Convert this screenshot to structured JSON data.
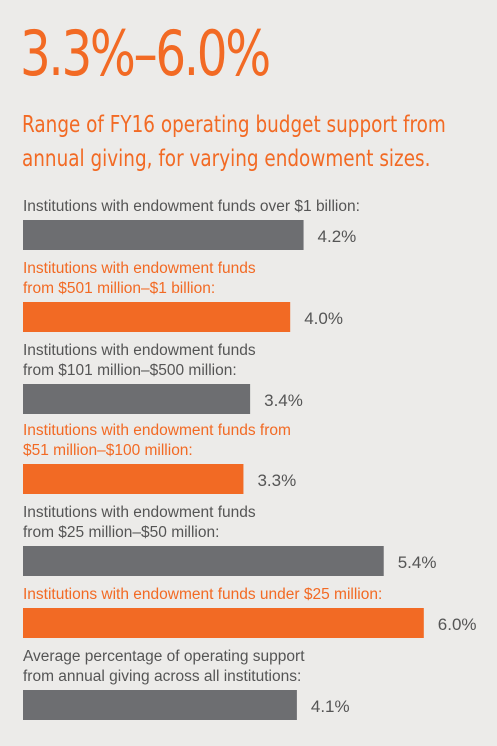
{
  "header": {
    "headline": "3.3%–6.0%",
    "subtitle": "Range of FY16 operating budget support from annual giving, for varying endowment sizes."
  },
  "colors": {
    "accent": "#f26a24",
    "bar_gray": "#6d6e71",
    "label_gray": "#555555",
    "background": "#ecebe9"
  },
  "chart_data": {
    "type": "bar",
    "orientation": "horizontal",
    "unit": "%",
    "xlim": [
      0,
      6.8
    ],
    "grid": false,
    "legend": "none",
    "categories": [
      [
        "Institutions with endowment funds over $1 billion:"
      ],
      [
        "Institutions with endowment funds",
        "from $501 million–$1 billion:"
      ],
      [
        "Institutions with endowment funds",
        "from $101 million–$500 million:"
      ],
      [
        "Institutions with endowment funds from",
        "$51 million–$100 million:"
      ],
      [
        "Institutions with endowment funds",
        "from $25 million–$50 million:"
      ],
      [
        "Institutions with endowment funds under $25 million:"
      ],
      [
        "Average percentage of operating support",
        "from annual giving across all institutions:"
      ]
    ],
    "values": [
      4.2,
      4.0,
      3.4,
      3.3,
      5.4,
      6.0,
      4.1
    ],
    "value_labels": [
      "4.2%",
      "4.0%",
      "3.4%",
      "3.3%",
      "5.4%",
      "6.0%",
      "4.1%"
    ],
    "bar_colors": [
      "#6d6e71",
      "#f26a24",
      "#6d6e71",
      "#f26a24",
      "#6d6e71",
      "#f26a24",
      "#6d6e71"
    ],
    "label_colors": [
      "#555555",
      "#f26a24",
      "#555555",
      "#f26a24",
      "#555555",
      "#f26a24",
      "#555555"
    ]
  }
}
